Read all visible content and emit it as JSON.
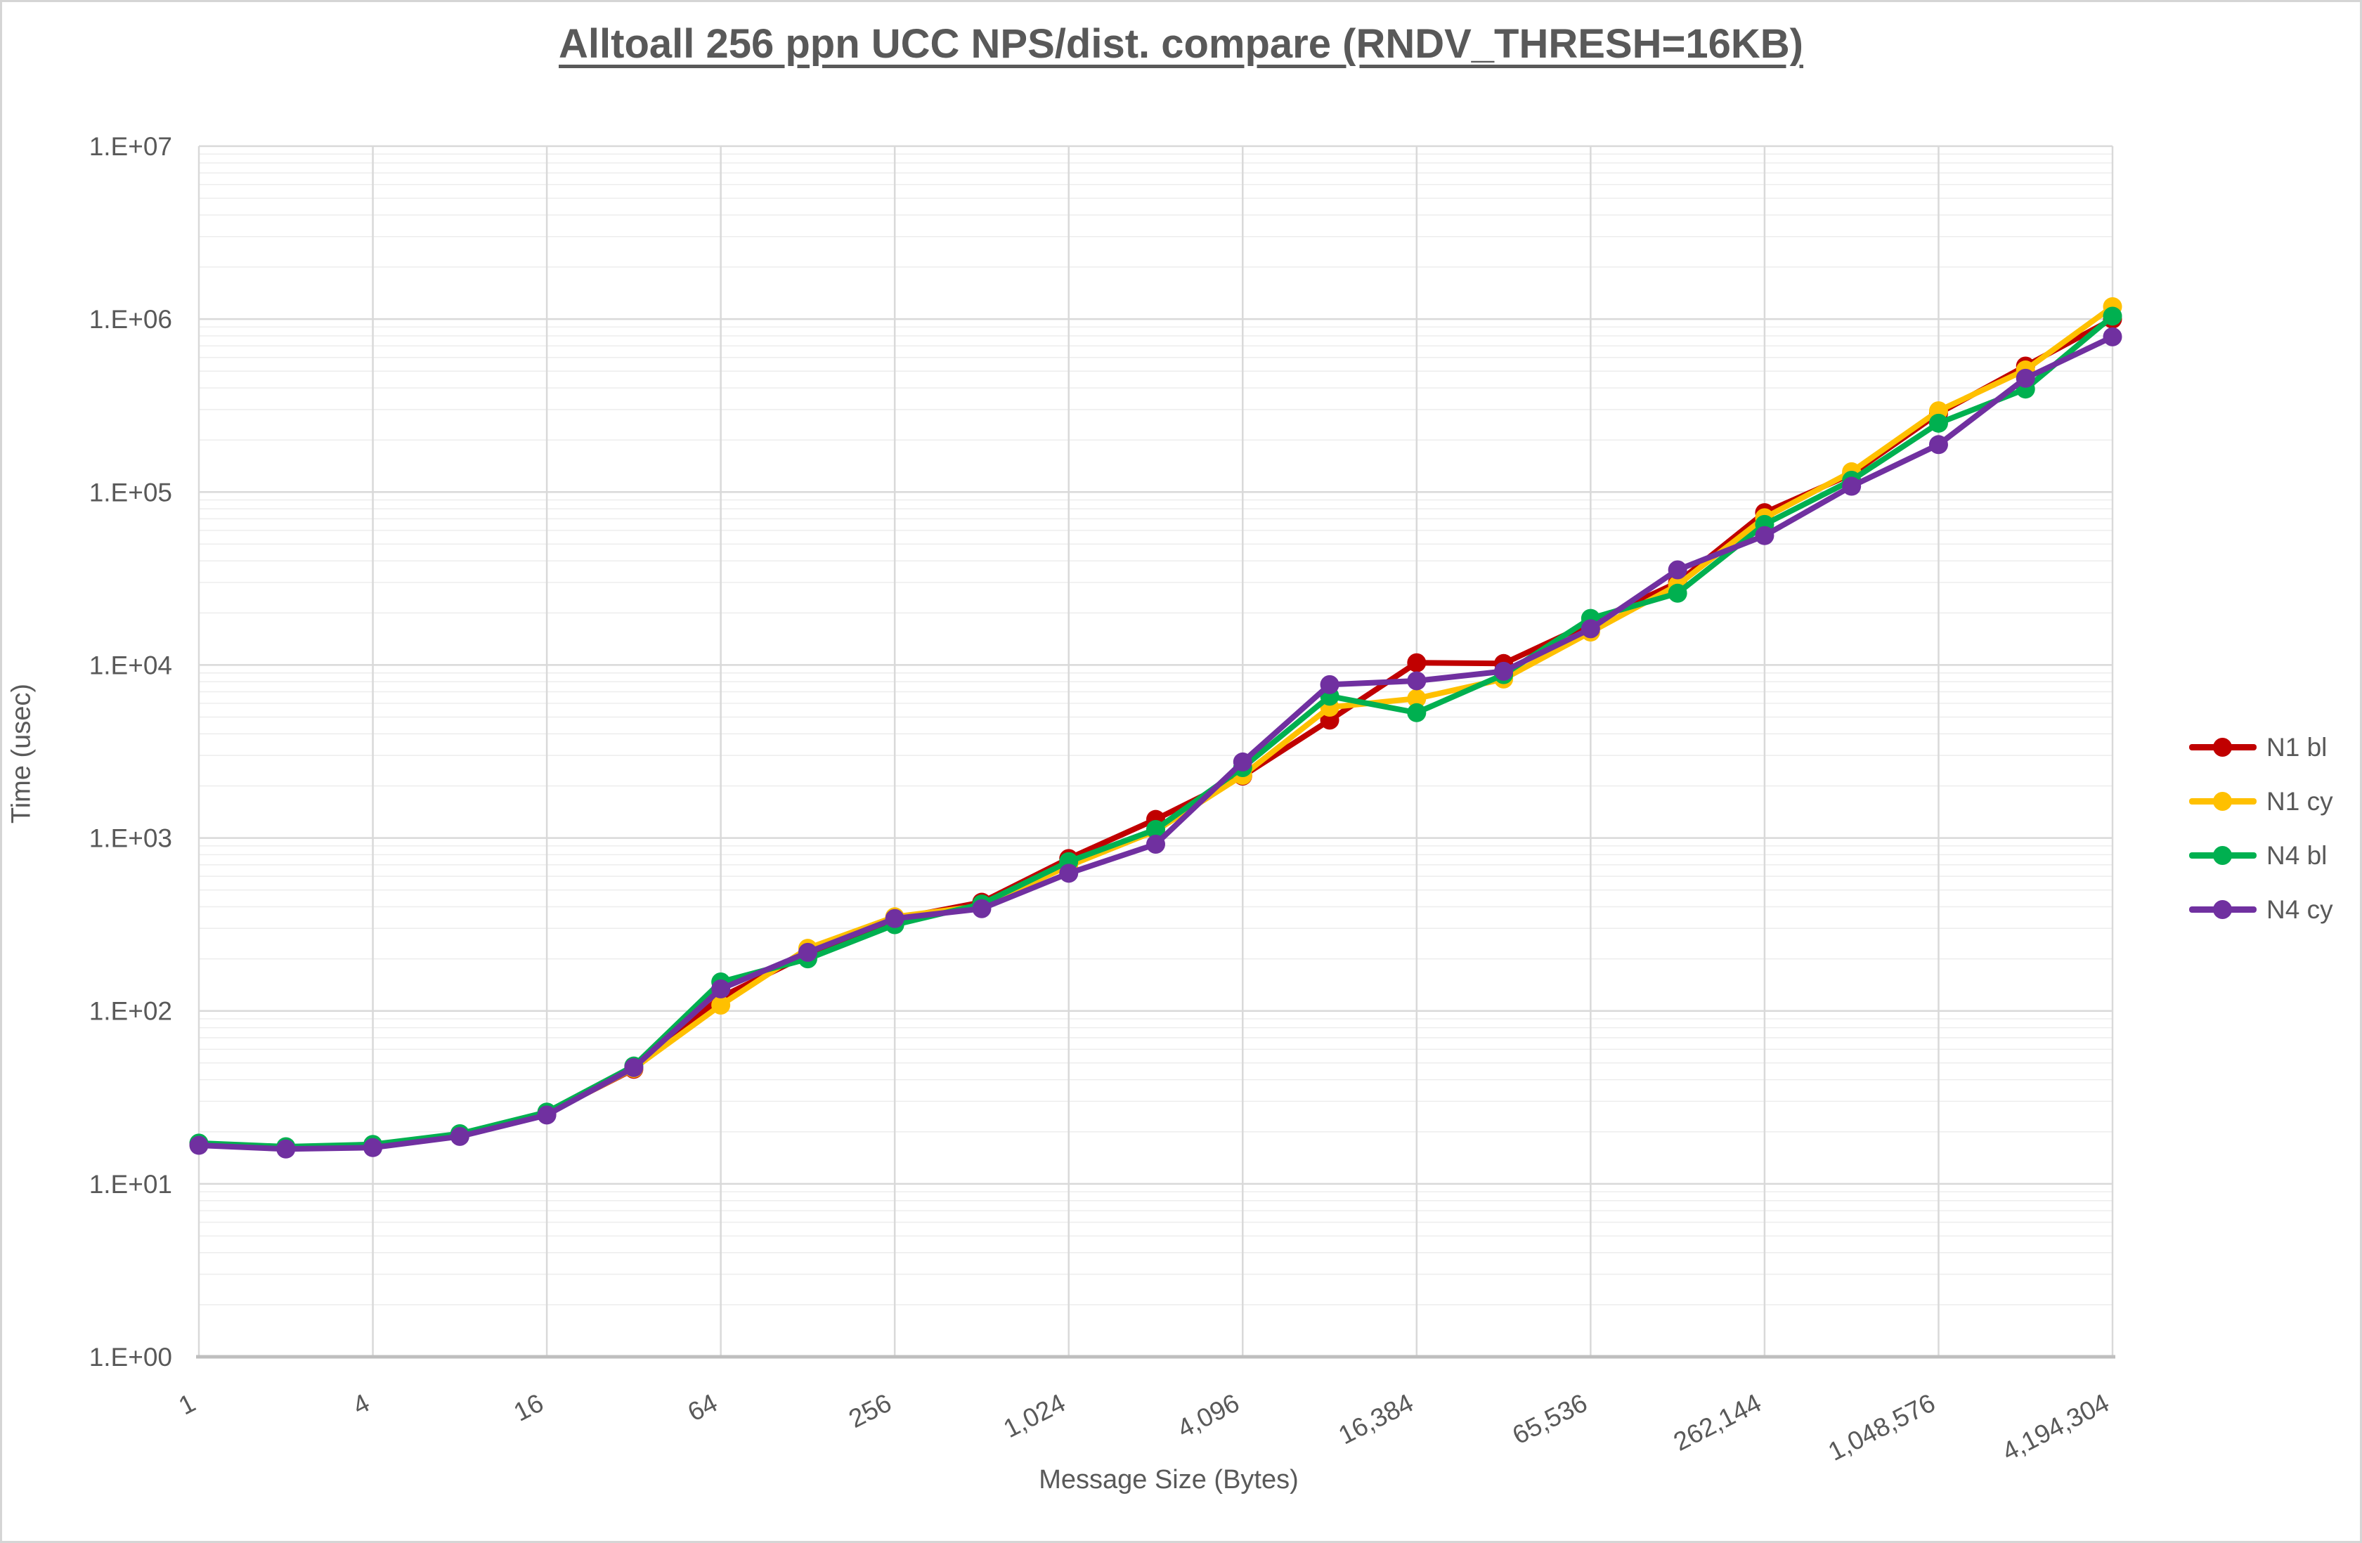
{
  "chart_data": {
    "type": "line",
    "title": "Alltoall 256 ppn UCC NPS/dist. compare (RNDV_THRESH=16KB)",
    "xlabel": "Message Size (Bytes)",
    "ylabel": "Time (usec)",
    "x_scale": "log2",
    "y_scale": "log10",
    "ylim": [
      1,
      10000000
    ],
    "xlim": [
      1,
      4194304
    ],
    "grid": "on",
    "legend_position": "right",
    "x_tick_labels": [
      "1",
      "4",
      "16",
      "64",
      "256",
      "1,024",
      "4,096",
      "16,384",
      "65,536",
      "262,144",
      "1,048,576",
      "4,194,304"
    ],
    "y_tick_labels": [
      "1.E+00",
      "1.E+01",
      "1.E+02",
      "1.E+03",
      "1.E+04",
      "1.E+05",
      "1.E+06",
      "1.E+07"
    ],
    "x": [
      1,
      2,
      4,
      8,
      16,
      32,
      64,
      128,
      256,
      512,
      1024,
      2048,
      4096,
      8192,
      16384,
      32768,
      65536,
      131072,
      262144,
      524288,
      1048576,
      2097152,
      4194304
    ],
    "series": [
      {
        "name": "N1 bl",
        "color": "#C00000",
        "values": [
          17,
          16.2,
          16.5,
          19,
          25.5,
          46,
          120,
          212,
          340,
          425,
          760,
          1280,
          2280,
          4800,
          10300,
          10200,
          17500,
          30000,
          76000,
          127000,
          285000,
          535000,
          1000000
        ]
      },
      {
        "name": "N1 cy",
        "color": "#FFC000",
        "values": [
          17,
          16.2,
          16.4,
          19,
          25.3,
          46.5,
          108,
          230,
          350,
          405,
          690,
          1100,
          2300,
          5700,
          6400,
          8300,
          15500,
          29000,
          71000,
          131000,
          295000,
          508000,
          1180000
        ]
      },
      {
        "name": "N4 bl",
        "color": "#00B050",
        "values": [
          17.2,
          16.4,
          16.9,
          19.5,
          26,
          48,
          147,
          200,
          315,
          415,
          730,
          1120,
          2550,
          6600,
          5300,
          8800,
          18600,
          26000,
          65000,
          117000,
          250000,
          394000,
          1040000
        ]
      },
      {
        "name": "N4 cy",
        "color": "#7030A0",
        "values": [
          16.7,
          15.9,
          16.2,
          18.8,
          25,
          47,
          134,
          218,
          342,
          390,
          625,
          920,
          2750,
          7700,
          8100,
          9200,
          16200,
          35500,
          56000,
          108000,
          188000,
          455000,
          790000
        ]
      }
    ],
    "colors": {
      "text": "#595959",
      "grid_major": "#D9D9D9",
      "grid_minor": "#EDEDED",
      "axis_line": "#BFBFBF"
    }
  }
}
